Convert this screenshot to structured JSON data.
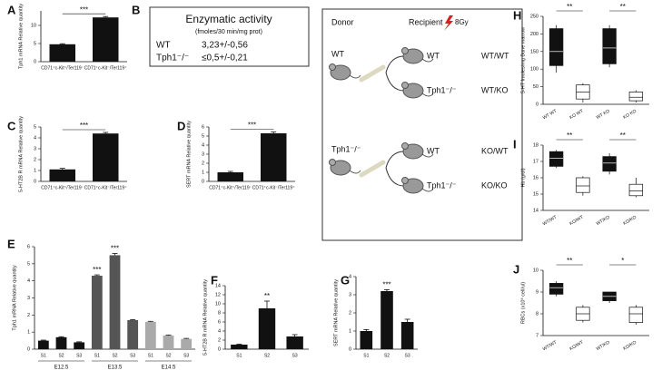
{
  "chart_data": [
    {
      "type": "bar",
      "panel": "A",
      "ylabel": "Tph1 mRNA Relative quantity",
      "categories": [
        "CD71⁺c-Kit⁺/Ter119⁻",
        "CD71⁺c-Kit⁻/Ter119⁺"
      ],
      "values": [
        4.8,
        12.2
      ],
      "errors": [
        0.15,
        0.25
      ],
      "color": "#111111",
      "ylim": [
        0,
        14
      ],
      "yticks": [
        0,
        5,
        10
      ],
      "sig": "***"
    },
    {
      "type": "bar",
      "panel": "C",
      "ylabel": "5-HT2B R mRNA Relative quantity",
      "categories": [
        "CD71⁺c-Kit⁺/Ter119⁻",
        "CD71⁺c-Kit⁻/Ter119⁺"
      ],
      "values": [
        1.1,
        4.4
      ],
      "errors": [
        0.1,
        0.1
      ],
      "color": "#111111",
      "ylim": [
        0,
        5
      ],
      "yticks": [
        0,
        1,
        2,
        3,
        4,
        5
      ],
      "sig": "***"
    },
    {
      "type": "bar",
      "panel": "D",
      "ylabel": "SERT mRNA Relative quantity",
      "categories": [
        "CD71⁺c-Kit⁺/Ter119⁻",
        "CD71⁺c-Kit⁻/Ter119⁺"
      ],
      "values": [
        1.0,
        5.3
      ],
      "errors": [
        0.1,
        0.15
      ],
      "color": "#111111",
      "ylim": [
        0,
        6
      ],
      "yticks": [
        0,
        1,
        2,
        3,
        4,
        5,
        6
      ],
      "sig": "***"
    },
    {
      "type": "bar",
      "panel": "E",
      "ylabel": "Tph1 mRNA Relative quantity",
      "categories": [
        "S1",
        "S2",
        "S3",
        "S1",
        "S2",
        "S3",
        "S1",
        "S2",
        "S3"
      ],
      "groups": [
        "E12.5",
        "E13.5",
        "E14.5"
      ],
      "group_colors": [
        "#111111",
        "#555555",
        "#aaaaaa"
      ],
      "values": [
        0.5,
        0.7,
        0.4,
        4.3,
        5.5,
        1.7,
        1.6,
        0.8,
        0.6
      ],
      "errors": [
        0.03,
        0.03,
        0.03,
        0.05,
        0.1,
        0.03,
        0.03,
        0.03,
        0.03
      ],
      "bar_labels": [
        null,
        null,
        null,
        "***",
        "***",
        null,
        null,
        null,
        null
      ],
      "ylim": [
        0,
        6
      ],
      "yticks": [
        0,
        1,
        2,
        3,
        4,
        5,
        6
      ]
    },
    {
      "type": "bar",
      "panel": "F",
      "ylabel": "5-HT2B R mRNA Relative quantity",
      "categories": [
        "S1",
        "S2",
        "S3"
      ],
      "values": [
        1.0,
        9.0,
        2.8
      ],
      "errors": [
        0.1,
        1.6,
        0.4
      ],
      "color": "#111111",
      "bar_labels": [
        null,
        "**",
        null
      ],
      "ylim": [
        0,
        14
      ],
      "yticks": [
        0,
        2,
        4,
        6,
        8,
        10,
        12,
        14
      ]
    },
    {
      "type": "bar",
      "panel": "G",
      "ylabel": "SERT mRNA Relative quantity",
      "categories": [
        "S1",
        "S2",
        "S3"
      ],
      "values": [
        1.0,
        3.2,
        1.5
      ],
      "errors": [
        0.08,
        0.08,
        0.15
      ],
      "color": "#111111",
      "bar_labels": [
        null,
        "***",
        null
      ],
      "ylim": [
        0,
        4
      ],
      "yticks": [
        0,
        1,
        2,
        3,
        4
      ]
    },
    {
      "type": "box",
      "panel": "H",
      "ylabel": "5-HT fmoles/mg Bone marrow",
      "categories": [
        "WT WT",
        "KO WT",
        "WT KO",
        "KO KO"
      ],
      "boxes": [
        [
          90,
          110,
          150,
          215,
          225
        ],
        [
          5,
          15,
          35,
          55,
          60
        ],
        [
          105,
          115,
          160,
          215,
          225
        ],
        [
          5,
          10,
          20,
          35,
          40
        ]
      ],
      "box_colors": [
        "#111111",
        "#ffffff",
        "#111111",
        "#ffffff"
      ],
      "ylim": [
        0,
        250
      ],
      "yticks": [
        0,
        50,
        100,
        150,
        200,
        250
      ],
      "sig": [
        "**",
        "**"
      ]
    },
    {
      "type": "box",
      "panel": "I",
      "ylabel": "Hb (g/dl)",
      "categories": [
        "WT/WT",
        "KO/WT",
        "WT/KO",
        "KO/KO"
      ],
      "boxes": [
        [
          16.6,
          16.7,
          17.2,
          17.6,
          17.7
        ],
        [
          14.9,
          15.1,
          15.5,
          16.0,
          16.1
        ],
        [
          16.2,
          16.4,
          16.9,
          17.3,
          17.5
        ],
        [
          14.8,
          14.9,
          15.2,
          15.6,
          16.0
        ]
      ],
      "box_colors": [
        "#111111",
        "#ffffff",
        "#111111",
        "#ffffff"
      ],
      "ylim": [
        14,
        18
      ],
      "yticks": [
        14,
        15,
        16,
        17,
        18
      ],
      "sig": [
        "**",
        "**"
      ]
    },
    {
      "type": "box",
      "panel": "J",
      "ylabel": "RBCs (x10⁶ cell/ul)",
      "categories": [
        "WT/WT",
        "KO/WT",
        "WT/KO",
        "KO/KO"
      ],
      "boxes": [
        [
          8.8,
          8.9,
          9.2,
          9.4,
          9.5
        ],
        [
          7.6,
          7.7,
          8.0,
          8.3,
          8.4
        ],
        [
          8.5,
          8.6,
          8.8,
          9.0,
          9.0
        ],
        [
          7.5,
          7.6,
          8.0,
          8.3,
          8.4
        ]
      ],
      "box_colors": [
        "#111111",
        "#ffffff",
        "#111111",
        "#ffffff"
      ],
      "ylim": [
        7,
        10
      ],
      "yticks": [
        7,
        8,
        9,
        10
      ],
      "sig": [
        "**",
        "*"
      ]
    }
  ],
  "enzymatic": {
    "panel": "B",
    "title": "Enzymatic activity",
    "subtitle": "(fmoles/30 min/mg prot)",
    "rows": [
      [
        "WT",
        "3,23+/-0,56"
      ],
      [
        "Tph1⁻/⁻",
        "≤0,5+/-0,21"
      ]
    ]
  },
  "diagram": {
    "donor": "Donor",
    "recipient": "Recipient",
    "dose": "8Gy",
    "donors": [
      "WT",
      "Tph1⁻/⁻"
    ],
    "recipients": [
      "WT",
      "Tph1⁻/⁻",
      "WT",
      "Tph1⁻/⁻"
    ],
    "outcomes": [
      "WT/WT",
      "WT/KO",
      "KO/WT",
      "KO/KO"
    ]
  }
}
